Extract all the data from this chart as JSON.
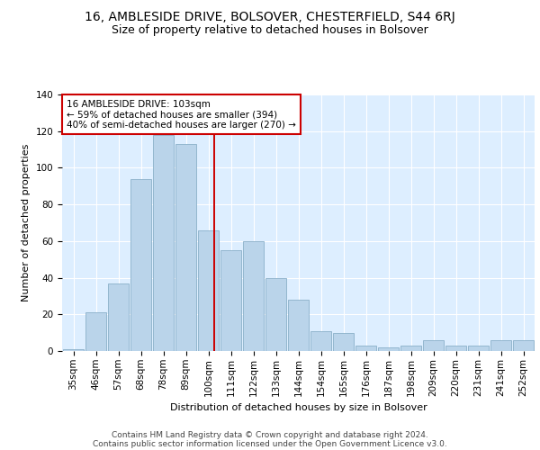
{
  "title": "16, AMBLESIDE DRIVE, BOLSOVER, CHESTERFIELD, S44 6RJ",
  "subtitle": "Size of property relative to detached houses in Bolsover",
  "xlabel": "Distribution of detached houses by size in Bolsover",
  "ylabel": "Number of detached properties",
  "cats": [
    "35sqm",
    "46sqm",
    "57sqm",
    "68sqm",
    "78sqm",
    "89sqm",
    "100sqm",
    "111sqm",
    "122sqm",
    "133sqm",
    "144sqm",
    "154sqm",
    "165sqm",
    "176sqm",
    "187sqm",
    "198sqm",
    "209sqm",
    "220sqm",
    "231sqm",
    "241sqm",
    "252sqm"
  ],
  "heights": [
    1,
    21,
    37,
    94,
    118,
    113,
    66,
    55,
    60,
    40,
    28,
    11,
    10,
    3,
    2,
    3,
    6,
    3,
    3,
    6,
    6
  ],
  "bar_color": "#bad4ea",
  "bar_edge_color": "#8aafc8",
  "vline_color": "#cc0000",
  "vline_pos": 6.27,
  "annotation_text": "16 AMBLESIDE DRIVE: 103sqm\n← 59% of detached houses are smaller (394)\n40% of semi-detached houses are larger (270) →",
  "ylim": [
    0,
    140
  ],
  "yticks": [
    0,
    20,
    40,
    60,
    80,
    100,
    120,
    140
  ],
  "fig_bg": "#ffffff",
  "plot_bg": "#ddeeff",
  "footer_line1": "Contains HM Land Registry data © Crown copyright and database right 2024.",
  "footer_line2": "Contains public sector information licensed under the Open Government Licence v3.0.",
  "title_fontsize": 10,
  "subtitle_fontsize": 9,
  "axis_fontsize": 8,
  "tick_fontsize": 7.5,
  "annot_fontsize": 7.5,
  "footer_fontsize": 6.5
}
